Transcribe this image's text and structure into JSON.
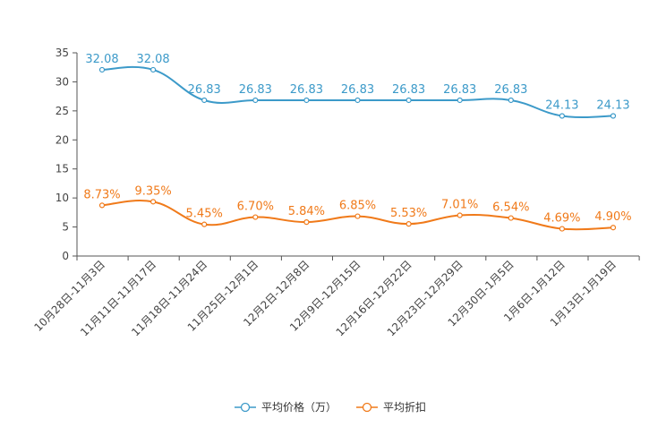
{
  "chart_data": {
    "type": "line",
    "categories": [
      "10月28日-11月3日",
      "11月11日-11月17日",
      "11月18日-11月24日",
      "11月25日-12月1日",
      "12月2日-12月8日",
      "12月9日-12月15日",
      "12月16日-12月22日",
      "12月23日-12月29日",
      "12月30日-1月5日",
      "1月6日-1月12日",
      "1月13日-1月19日"
    ],
    "series": [
      {
        "name": "平均价格（万）",
        "color": "#3c9ac9",
        "values": [
          32.08,
          32.08,
          26.83,
          26.83,
          26.83,
          26.83,
          26.83,
          26.83,
          26.83,
          24.13,
          24.13
        ],
        "labels": [
          "32.08",
          "32.08",
          "26.83",
          "26.83",
          "26.83",
          "26.83",
          "26.83",
          "26.83",
          "26.83",
          "24.13",
          "24.13"
        ]
      },
      {
        "name": "平均折扣",
        "color": "#f07a1a",
        "values": [
          8.73,
          9.35,
          5.45,
          6.7,
          5.84,
          6.85,
          5.53,
          7.01,
          6.54,
          4.69,
          4.9
        ],
        "labels": [
          "8.73%",
          "9.35%",
          "5.45%",
          "6.70%",
          "5.84%",
          "6.85%",
          "5.53%",
          "7.01%",
          "6.54%",
          "4.69%",
          "4.90%"
        ]
      }
    ],
    "y_ticks": [
      "0",
      "5",
      "10",
      "15",
      "20",
      "25",
      "30",
      "35"
    ],
    "ylim": [
      0,
      35
    ],
    "legend_position": "bottom-center",
    "grid": false,
    "title": "",
    "xlabel": "",
    "ylabel": ""
  }
}
